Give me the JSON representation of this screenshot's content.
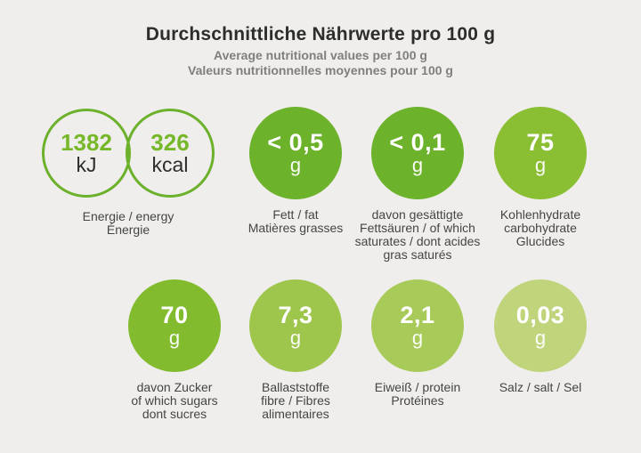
{
  "header": {
    "title": "Durchschnittliche Nährwerte pro 100 g",
    "subtitle_en": "Average nutritional values per 100 g",
    "subtitle_fr": "Valeurs nutritionnelles moyennes pour 100 g"
  },
  "energy": {
    "kj": {
      "value": "1382",
      "unit": "kJ"
    },
    "kcal": {
      "value": "326",
      "unit": "kcal"
    },
    "label_lines": [
      "Energie / energy",
      "Énergie"
    ]
  },
  "nutrients": [
    {
      "id": "fat",
      "value": "< 0,5",
      "unit": "g",
      "color": "#6cb22a",
      "label_lines": [
        "Fett / fat",
        "Matières grasses"
      ]
    },
    {
      "id": "saturates",
      "value": "< 0,1",
      "unit": "g",
      "color": "#6cb22a",
      "label_lines": [
        "davon gesättigte",
        "Fettsäuren / of which",
        "saturates / dont acides",
        "gras saturés"
      ]
    },
    {
      "id": "carbohydrate",
      "value": "75",
      "unit": "g",
      "color": "#8abe33",
      "label_lines": [
        "Kohlenhydrate",
        "carbohydrate",
        "Glucides"
      ]
    },
    {
      "id": "sugars",
      "value": "70",
      "unit": "g",
      "color": "#82bb2e",
      "label_lines": [
        "davon Zucker",
        "of which sugars",
        "dont sucres"
      ]
    },
    {
      "id": "fibre",
      "value": "7,3",
      "unit": "g",
      "color": "#9fc64c",
      "label_lines": [
        "Ballaststoffe",
        "fibre / Fibres",
        "alimentaires"
      ]
    },
    {
      "id": "protein",
      "value": "2,1",
      "unit": "g",
      "color": "#a8ca59",
      "label_lines": [
        "Eiweiß / protein",
        "Protéines"
      ]
    },
    {
      "id": "salt",
      "value": "0,03",
      "unit": "g",
      "color": "#c0d47c",
      "label_lines": [
        "Salz / salt / Sel"
      ]
    }
  ],
  "colors": {
    "background": "#efeeec",
    "title_text": "#2d2d2b",
    "subtitle_text": "#7f7f7c",
    "accent_green": "#76b82a",
    "energy_ring": "#6cb12b",
    "label_text": "#454543",
    "circle_text": "#ffffff"
  }
}
